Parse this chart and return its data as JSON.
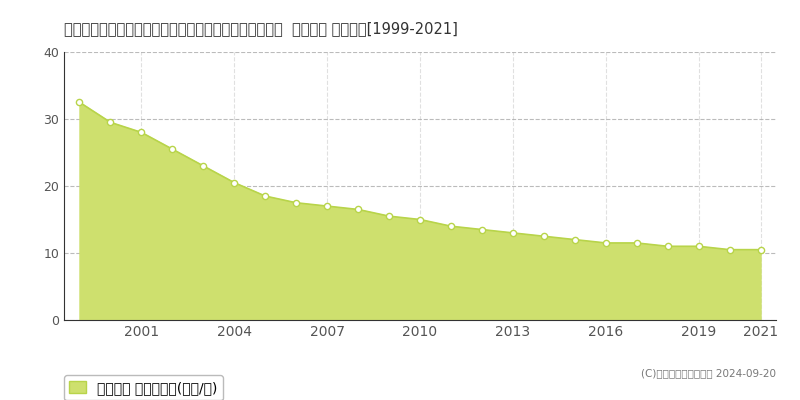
{
  "title": "和歌山県伊都郡かつらぎ町大字新田字上嶋北１０６番６  基準地価 地価推移[1999-2021]",
  "years": [
    1999,
    2000,
    2001,
    2002,
    2003,
    2004,
    2005,
    2006,
    2007,
    2008,
    2009,
    2010,
    2011,
    2012,
    2013,
    2014,
    2015,
    2016,
    2017,
    2018,
    2019,
    2020,
    2021
  ],
  "values": [
    32.5,
    29.5,
    28.0,
    25.5,
    23.0,
    20.5,
    18.5,
    17.5,
    17.0,
    16.5,
    15.5,
    15.0,
    14.0,
    13.5,
    13.0,
    12.5,
    12.0,
    11.5,
    11.5,
    11.0,
    11.0,
    10.5,
    10.5
  ],
  "line_color": "#b8d44a",
  "fill_color": "#cee06e",
  "marker_face_color": "#ffffff",
  "marker_edge_color": "#b8d44a",
  "ylim": [
    0,
    40
  ],
  "yticks": [
    0,
    10,
    20,
    30,
    40
  ],
  "xtick_years": [
    2001,
    2004,
    2007,
    2010,
    2013,
    2016,
    2019,
    2021
  ],
  "background_color": "#ffffff",
  "grid_color_h": "#aaaaaa",
  "grid_color_v": "#cccccc",
  "title_fontsize": 10.5,
  "legend_label": "基準地価 平均坪単価(万円/坪)",
  "copyright_text": "(C)土地価格ドットコム 2024-09-20",
  "legend_color": "#cee06e",
  "legend_edge_color": "#b8d44a"
}
